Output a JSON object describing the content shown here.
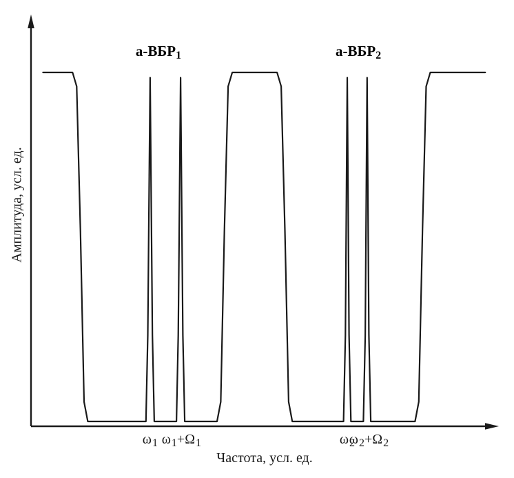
{
  "figure": {
    "background": "#ffffff",
    "line_color": "#1a1a1a"
  },
  "chart_data": {
    "type": "line",
    "title": "",
    "xlabel": "Частота, усл. ед.",
    "ylabel": "Амплитуда, усл. ед.",
    "x_range": [
      0,
      100
    ],
    "y_range": [
      0,
      1
    ],
    "grid": false,
    "legend": "none",
    "axes_style": "arrow-tipped axes, no numeric ticks (arbitrary units)",
    "annotations": [
      {
        "base": "а-ВБР",
        "sub": "1",
        "x": 27.6,
        "y": 1.03
      },
      {
        "base": "а-ВБР",
        "sub": "2",
        "x": 70.9,
        "y": 1.03
      }
    ],
    "x_ticks": [
      {
        "pre": "ω",
        "sub1": "1",
        "mid": "",
        "sub2": "",
        "x": 25.8
      },
      {
        "pre": "ω",
        "sub1": "1",
        "mid": "+Ω",
        "sub2": "1",
        "x": 32.6
      },
      {
        "pre": "ω",
        "sub1": "2",
        "mid": "",
        "sub2": "",
        "x": 68.5
      },
      {
        "pre": "ω",
        "sub1": "2",
        "mid": "+Ω",
        "sub2": "2",
        "x": 73.2
      }
    ],
    "series": [
      {
        "name": "spectrum",
        "points": [
          [
            2.6,
            1.0
          ],
          [
            9.0,
            1.0
          ],
          [
            9.9,
            0.96
          ],
          [
            10.7,
            0.55
          ],
          [
            11.5,
            0.06
          ],
          [
            12.3,
            0.004
          ],
          [
            24.9,
            0.004
          ],
          [
            25.3,
            0.25
          ],
          [
            25.8,
            0.985
          ],
          [
            26.3,
            0.25
          ],
          [
            26.7,
            0.004
          ],
          [
            31.5,
            0.004
          ],
          [
            31.9,
            0.25
          ],
          [
            32.4,
            0.985
          ],
          [
            32.9,
            0.25
          ],
          [
            33.3,
            0.004
          ],
          [
            40.3,
            0.004
          ],
          [
            41.1,
            0.06
          ],
          [
            41.9,
            0.55
          ],
          [
            42.7,
            0.96
          ],
          [
            43.6,
            1.0
          ],
          [
            53.3,
            1.0
          ],
          [
            54.2,
            0.96
          ],
          [
            55.0,
            0.55
          ],
          [
            55.8,
            0.06
          ],
          [
            56.6,
            0.004
          ],
          [
            67.7,
            0.004
          ],
          [
            68.1,
            0.25
          ],
          [
            68.5,
            0.985
          ],
          [
            68.9,
            0.25
          ],
          [
            69.3,
            0.004
          ],
          [
            72.0,
            0.004
          ],
          [
            72.4,
            0.25
          ],
          [
            72.8,
            0.985
          ],
          [
            73.2,
            0.25
          ],
          [
            73.6,
            0.004
          ],
          [
            83.2,
            0.004
          ],
          [
            84.0,
            0.06
          ],
          [
            84.8,
            0.55
          ],
          [
            85.6,
            0.96
          ],
          [
            86.5,
            1.0
          ],
          [
            98.4,
            1.0
          ]
        ]
      }
    ]
  }
}
